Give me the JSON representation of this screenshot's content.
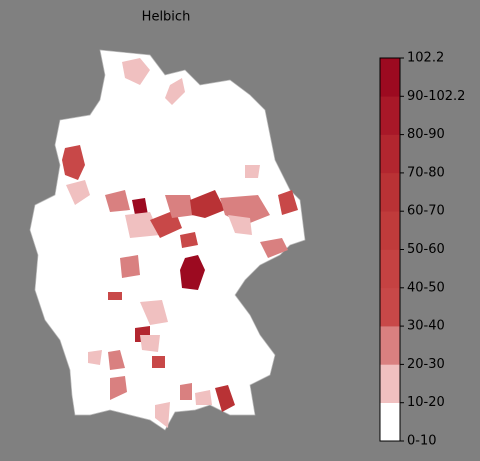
{
  "title": "Helbich",
  "colorbar": {
    "labels": [
      "0-10",
      "10-20",
      "20-30",
      "30-40",
      "40-50",
      "50-60",
      "60-70",
      "70-80",
      "80-90",
      "90-102.2",
      "102.2"
    ],
    "colors": [
      "#ffffff",
      "#f0c0c0",
      "#d98080",
      "#c84848",
      "#c54242",
      "#c03b3b",
      "#b93235",
      "#b2262f",
      "#a81828",
      "#9c0a20"
    ]
  }
}
